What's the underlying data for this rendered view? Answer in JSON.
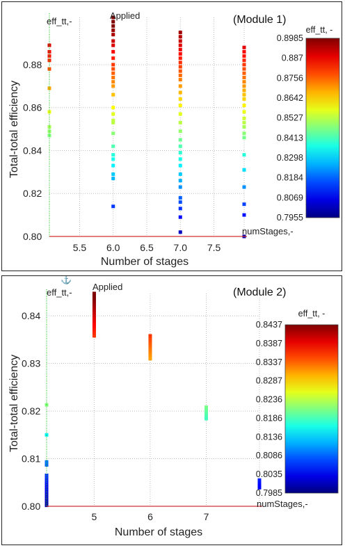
{
  "chart_data": [
    {
      "type": "scatter",
      "module_label": "(Module 1)",
      "applied_label": "Applied",
      "y_var_label": "eff_tt,-",
      "x_var_label": "numStages,-",
      "xlabel": "Number of stages",
      "ylabel": "Total-total efficiency",
      "xlim": [
        5.05,
        7.95
      ],
      "ylim": [
        0.8,
        0.902
      ],
      "x_ticks": [
        "5.5",
        "6.0",
        "6.5",
        "7.0",
        "7.5"
      ],
      "y_ticks": [
        "0.80",
        "0.82",
        "0.84",
        "0.86",
        "0.88"
      ],
      "grid": true,
      "colorbar": {
        "title": "eff_tt, -",
        "min": 0.7955,
        "max": 0.8985,
        "ticks": [
          "0.8985",
          "0.887",
          "0.8756",
          "0.8642",
          "0.8527",
          "0.8413",
          "0.8298",
          "0.8184",
          "0.8069",
          "0.7955"
        ]
      },
      "columns": [
        {
          "x": 5.05,
          "y": [
            0.889,
            0.886,
            0.884,
            0.882,
            0.878,
            0.869,
            0.858,
            0.851,
            0.849,
            0.847
          ]
        },
        {
          "x": 6.0,
          "y": [
            0.902,
            0.9,
            0.898,
            0.896,
            0.894,
            0.891,
            0.889,
            0.886,
            0.883,
            0.88,
            0.878,
            0.876,
            0.874,
            0.872,
            0.87,
            0.866,
            0.86,
            0.857,
            0.854,
            0.853,
            0.848,
            0.842,
            0.838,
            0.836,
            0.833,
            0.829,
            0.827,
            0.814
          ]
        },
        {
          "x": 7.0,
          "y": [
            0.895,
            0.893,
            0.891,
            0.889,
            0.887,
            0.885,
            0.883,
            0.881,
            0.879,
            0.877,
            0.875,
            0.873,
            0.87,
            0.867,
            0.864,
            0.861,
            0.857,
            0.853,
            0.849,
            0.845,
            0.842,
            0.839,
            0.836,
            0.833,
            0.829,
            0.826,
            0.823,
            0.818,
            0.816,
            0.813,
            0.809,
            0.802
          ]
        },
        {
          "x": 7.95,
          "y": [
            0.888,
            0.886,
            0.884,
            0.882,
            0.88,
            0.878,
            0.876,
            0.874,
            0.872,
            0.87,
            0.868,
            0.866,
            0.864,
            0.861,
            0.858,
            0.855,
            0.853,
            0.851,
            0.848,
            0.846,
            0.838,
            0.831,
            0.823,
            0.815,
            0.81,
            0.8
          ]
        }
      ]
    },
    {
      "type": "scatter",
      "module_label": "(Module 2)",
      "applied_label": "Applied",
      "y_var_label": "eff_tt,-",
      "x_var_label": "numStages,-",
      "xlabel": "Number of stages",
      "ylabel": "Total-total efficiency",
      "xlim": [
        4.15,
        7.95
      ],
      "ylim": [
        0.8,
        0.8447
      ],
      "x_ticks": [
        "5",
        "6",
        "7"
      ],
      "y_ticks": [
        "0.80",
        "0.81",
        "0.82",
        "0.83",
        "0.84"
      ],
      "grid": true,
      "colorbar": {
        "title": "eff_tt, -",
        "min": 0.7985,
        "max": 0.8437,
        "ticks": [
          "0.8437",
          "0.8387",
          "0.8337",
          "0.8287",
          "0.8236",
          "0.8186",
          "0.8136",
          "0.8086",
          "0.8035",
          "0.7985"
        ]
      },
      "columns": [
        {
          "x": 4.15,
          "y": [
            0.8213,
            0.815,
            0.8093,
            0.8087,
            0.8065,
            0.806,
            0.8055,
            0.805,
            0.8045,
            0.804,
            0.8035,
            0.803,
            0.8025,
            0.802,
            0.8013,
            0.8007,
            0.8002
          ]
        },
        {
          "x": 5.0,
          "y": [
            0.8447,
            0.8442,
            0.8436,
            0.843,
            0.8424,
            0.8418,
            0.8412,
            0.8406,
            0.84,
            0.8394,
            0.8388,
            0.8382,
            0.8376,
            0.837,
            0.8364,
            0.8358
          ]
        },
        {
          "x": 6.0,
          "y": [
            0.8358,
            0.8354,
            0.835,
            0.8346,
            0.8342,
            0.8338,
            0.8334,
            0.833,
            0.8326,
            0.8322,
            0.8318,
            0.8314,
            0.831
          ]
        },
        {
          "x": 7.0,
          "y": [
            0.8208,
            0.8204,
            0.82,
            0.8196,
            0.8192,
            0.8188,
            0.8184
          ]
        },
        {
          "x": 7.95,
          "y": [
            0.8055,
            0.8051,
            0.8047,
            0.8043,
            0.8039
          ]
        }
      ]
    }
  ]
}
